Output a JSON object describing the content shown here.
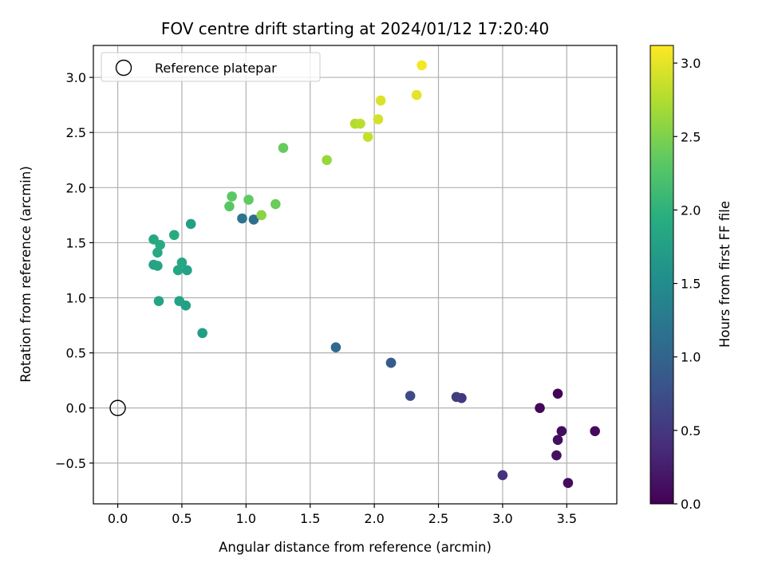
{
  "chart_data": {
    "type": "scatter",
    "title": "FOV centre drift starting at 2024/01/12 17:20:40",
    "xlabel": "Angular distance from reference (arcmin)",
    "ylabel": "Rotation from reference (arcmin)",
    "xlim": [
      -0.19,
      3.89
    ],
    "ylim": [
      -0.87,
      3.29
    ],
    "xticks": [
      0.0,
      0.5,
      1.0,
      1.5,
      2.0,
      2.5,
      3.0,
      3.5
    ],
    "xtick_labels": [
      "0.0",
      "0.5",
      "1.0",
      "1.5",
      "2.0",
      "2.5",
      "3.0",
      "3.5"
    ],
    "yticks": [
      -0.5,
      0.0,
      0.5,
      1.0,
      1.5,
      2.0,
      2.5,
      3.0
    ],
    "ytick_labels": [
      "−0.5",
      "0.0",
      "0.5",
      "1.0",
      "1.5",
      "2.0",
      "2.5",
      "3.0"
    ],
    "grid": true,
    "legend": {
      "placement": "upper-left",
      "entries": [
        {
          "label": "Reference platepar",
          "marker": "hollow-circle",
          "x": 0.0,
          "y": 0.0
        }
      ]
    },
    "colorbar": {
      "label": "Hours from first FF file",
      "colormap": "viridis",
      "range": [
        0.0,
        3.12
      ],
      "ticks": [
        0.0,
        0.5,
        1.0,
        1.5,
        2.0,
        2.5,
        3.0
      ],
      "tick_labels": [
        "0.0",
        "0.5",
        "1.0",
        "1.5",
        "2.0",
        "2.5",
        "3.0"
      ]
    },
    "points": [
      {
        "x": 3.43,
        "y": 0.13,
        "c": 0.02
      },
      {
        "x": 3.29,
        "y": 0.0,
        "c": 0.05
      },
      {
        "x": 3.72,
        "y": -0.21,
        "c": 0.08
      },
      {
        "x": 3.46,
        "y": -0.21,
        "c": 0.1
      },
      {
        "x": 3.43,
        "y": -0.29,
        "c": 0.12
      },
      {
        "x": 3.42,
        "y": -0.43,
        "c": 0.14
      },
      {
        "x": 3.51,
        "y": -0.68,
        "c": 0.1
      },
      {
        "x": 3.0,
        "y": -0.61,
        "c": 0.45
      },
      {
        "x": 2.68,
        "y": 0.09,
        "c": 0.5
      },
      {
        "x": 2.64,
        "y": 0.1,
        "c": 0.55
      },
      {
        "x": 2.28,
        "y": 0.11,
        "c": 0.72
      },
      {
        "x": 2.13,
        "y": 0.41,
        "c": 0.85
      },
      {
        "x": 2.13,
        "y": 0.41,
        "c": 0.9
      },
      {
        "x": 1.7,
        "y": 0.55,
        "c": 1.05
      },
      {
        "x": 0.97,
        "y": 1.72,
        "c": 1.18
      },
      {
        "x": 1.06,
        "y": 1.71,
        "c": 1.13
      },
      {
        "x": 0.66,
        "y": 0.68,
        "c": 1.72
      },
      {
        "x": 0.53,
        "y": 0.93,
        "c": 1.75
      },
      {
        "x": 0.48,
        "y": 0.97,
        "c": 1.78
      },
      {
        "x": 0.32,
        "y": 0.97,
        "c": 1.82
      },
      {
        "x": 0.28,
        "y": 1.3,
        "c": 1.8
      },
      {
        "x": 0.31,
        "y": 1.29,
        "c": 1.82
      },
      {
        "x": 0.47,
        "y": 1.25,
        "c": 1.84
      },
      {
        "x": 0.54,
        "y": 1.25,
        "c": 1.8
      },
      {
        "x": 0.5,
        "y": 1.32,
        "c": 1.86
      },
      {
        "x": 0.31,
        "y": 1.41,
        "c": 1.88
      },
      {
        "x": 0.33,
        "y": 1.48,
        "c": 1.9
      },
      {
        "x": 0.28,
        "y": 1.53,
        "c": 1.86
      },
      {
        "x": 0.44,
        "y": 1.57,
        "c": 1.92
      },
      {
        "x": 0.57,
        "y": 1.67,
        "c": 1.75
      },
      {
        "x": 0.87,
        "y": 1.83,
        "c": 2.3
      },
      {
        "x": 0.89,
        "y": 1.92,
        "c": 2.32
      },
      {
        "x": 1.02,
        "y": 1.89,
        "c": 2.35
      },
      {
        "x": 1.23,
        "y": 1.85,
        "c": 2.4
      },
      {
        "x": 1.12,
        "y": 1.75,
        "c": 2.55
      },
      {
        "x": 1.29,
        "y": 2.36,
        "c": 2.38
      },
      {
        "x": 1.63,
        "y": 2.25,
        "c": 2.62
      },
      {
        "x": 1.85,
        "y": 2.58,
        "c": 2.75
      },
      {
        "x": 1.89,
        "y": 2.58,
        "c": 2.8
      },
      {
        "x": 1.95,
        "y": 2.46,
        "c": 2.85
      },
      {
        "x": 2.03,
        "y": 2.62,
        "c": 2.92
      },
      {
        "x": 2.05,
        "y": 2.79,
        "c": 2.96
      },
      {
        "x": 2.33,
        "y": 2.84,
        "c": 3.0
      },
      {
        "x": 2.37,
        "y": 3.11,
        "c": 3.08
      }
    ]
  }
}
